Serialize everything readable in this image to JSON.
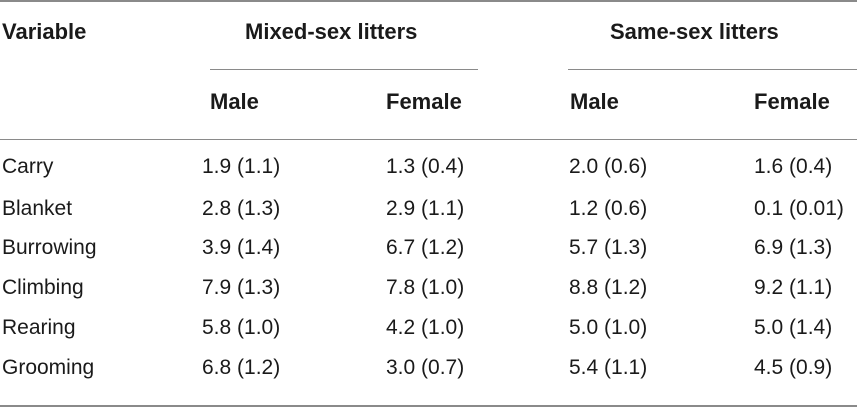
{
  "table": {
    "header": {
      "variable": "Variable",
      "group_mixed": "Mixed-sex litters",
      "group_same": "Same-sex litters",
      "mixed_male": "Male",
      "mixed_female": "Female",
      "same_male": "Male",
      "same_female": "Female"
    },
    "rows": [
      {
        "variable": "Carry",
        "mixed_male": "1.9 (1.1)",
        "mixed_female": "1.3 (0.4)",
        "same_male": "2.0 (0.6)",
        "same_female": "1.6 (0.4)"
      },
      {
        "variable": "Blanket",
        "mixed_male": "2.8 (1.3)",
        "mixed_female": "2.9 (1.1)",
        "same_male": "1.2 (0.6)",
        "same_female": "0.1 (0.01)"
      },
      {
        "variable": "Burrowing",
        "mixed_male": "3.9 (1.4)",
        "mixed_female": "6.7 (1.2)",
        "same_male": "5.7 (1.3)",
        "same_female": "6.9 (1.3)"
      },
      {
        "variable": "Climbing",
        "mixed_male": "7.9 (1.3)",
        "mixed_female": "7.8 (1.0)",
        "same_male": "8.8 (1.2)",
        "same_female": "9.2 (1.1)"
      },
      {
        "variable": "Rearing",
        "mixed_male": "5.8 (1.0)",
        "mixed_female": "4.2 (1.0)",
        "same_male": "5.0 (1.0)",
        "same_female": "5.0 (1.4)"
      },
      {
        "variable": "Grooming",
        "mixed_male": "6.8 (1.2)",
        "mixed_female": "3.0 (0.7)",
        "same_male": "5.4 (1.1)",
        "same_female": "4.5 (0.9)"
      }
    ]
  }
}
